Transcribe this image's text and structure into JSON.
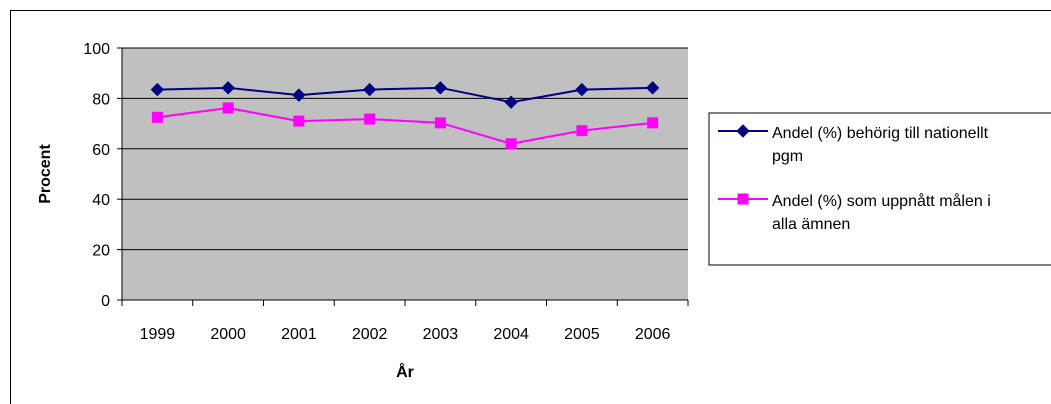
{
  "chart_data": {
    "type": "line",
    "categories": [
      "1999",
      "2000",
      "2001",
      "2002",
      "2003",
      "2004",
      "2005",
      "2006"
    ],
    "series": [
      {
        "name": "Andel (%) behörig till nationellt pgm",
        "name_lines": [
          "Andel (%) behörig till nationellt",
          "pgm"
        ],
        "color": "#000080",
        "marker": "diamond",
        "values": [
          83.5,
          84.2,
          81.3,
          83.5,
          84.2,
          78.5,
          83.5,
          84.2
        ]
      },
      {
        "name": "Andel (%) som uppnått målen i alla ämnen",
        "name_lines": [
          "Andel (%) som uppnått målen i",
          "alla ämnen"
        ],
        "color": "#ff00ff",
        "marker": "square",
        "values": [
          72.5,
          76.2,
          71.0,
          71.8,
          70.3,
          62.0,
          67.2,
          70.3
        ]
      }
    ],
    "yticks": [
      "0",
      "20",
      "40",
      "60",
      "80",
      "100"
    ],
    "ylim": [
      0,
      100
    ],
    "xlabel": "År",
    "ylabel": "Procent",
    "plot_background": "#c0c0c0",
    "grid": true,
    "legend_position": "right"
  }
}
